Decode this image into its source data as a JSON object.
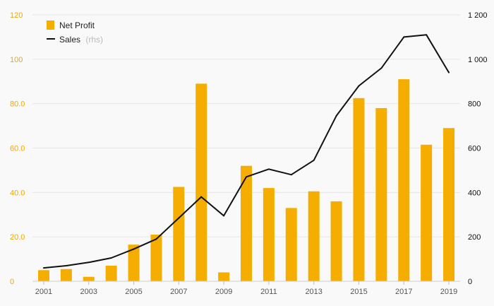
{
  "colors": {
    "bar": "#f5ad00",
    "line": "#111111",
    "left_axis_text": "#f0a800",
    "right_axis_text": "#111111",
    "grid": "#e6e6e6",
    "background": "#f9f9f9"
  },
  "legend": {
    "placement": "top-left",
    "net_profit_label": "Net Profit",
    "sales_label": "Sales",
    "sales_note": "(rhs)"
  },
  "chart_data": {
    "type": "bar",
    "categories": [
      "2001",
      "2002",
      "2003",
      "2004",
      "2005",
      "2006",
      "2007",
      "2008",
      "2009",
      "2010",
      "2011",
      "2012",
      "2013",
      "2014",
      "2015",
      "2016",
      "2017",
      "2018",
      "2019"
    ],
    "x_tick_labels": [
      "2001",
      "2003",
      "2005",
      "2007",
      "2009",
      "2011",
      "2013",
      "2015",
      "2017",
      "2019"
    ],
    "series": [
      {
        "name": "Net Profit",
        "kind": "bar",
        "axis": "left",
        "values": [
          5.0,
          5.5,
          2.0,
          7.0,
          16.5,
          21.0,
          42.5,
          89.0,
          4.0,
          52.0,
          42.0,
          33.0,
          40.5,
          36.0,
          82.5,
          78.0,
          91.0,
          61.5,
          69.0
        ]
      },
      {
        "name": "Sales",
        "kind": "line",
        "axis": "right",
        "values": [
          60,
          70,
          85,
          105,
          145,
          190,
          285,
          380,
          295,
          470,
          505,
          480,
          545,
          745,
          880,
          960,
          1100,
          1110,
          940
        ]
      }
    ],
    "left_axis": {
      "min": 0,
      "max": 120,
      "tick_labels": [
        "0",
        "20.0",
        "40.0",
        "60.0",
        "80.0",
        "100",
        "120"
      ]
    },
    "right_axis": {
      "min": 0,
      "max": 1200,
      "tick_labels": [
        "0",
        "200",
        "400",
        "600",
        "800",
        "1 000",
        "1 200"
      ]
    },
    "grid": true
  }
}
